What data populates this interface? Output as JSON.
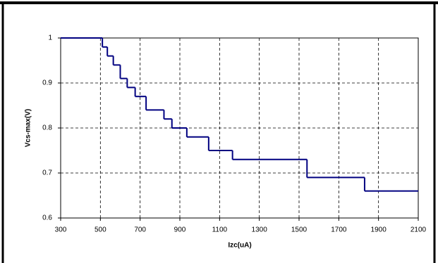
{
  "chart_data": {
    "type": "line",
    "step": "post",
    "xlabel": "Izc(uA)",
    "ylabel": "Vcs-max(V)",
    "x": [
      300,
      510,
      535,
      565,
      600,
      635,
      675,
      730,
      820,
      860,
      935,
      1045,
      1165,
      1540,
      1830
    ],
    "series": [
      {
        "name": "Vcs-max",
        "color": "#000080",
        "values": [
          1,
          0.98,
          0.96,
          0.94,
          0.91,
          0.89,
          0.87,
          0.84,
          0.82,
          0.8,
          0.78,
          0.75,
          0.73,
          0.69,
          0.66
        ]
      }
    ],
    "xlim": [
      300,
      2100
    ],
    "xticks": [
      300,
      500,
      700,
      900,
      1100,
      1300,
      1500,
      1700,
      1900,
      2100
    ],
    "ylim": [
      0.6,
      1
    ],
    "yticks": [
      0.6,
      0.7,
      0.8,
      0.9,
      1
    ],
    "grid": true
  }
}
